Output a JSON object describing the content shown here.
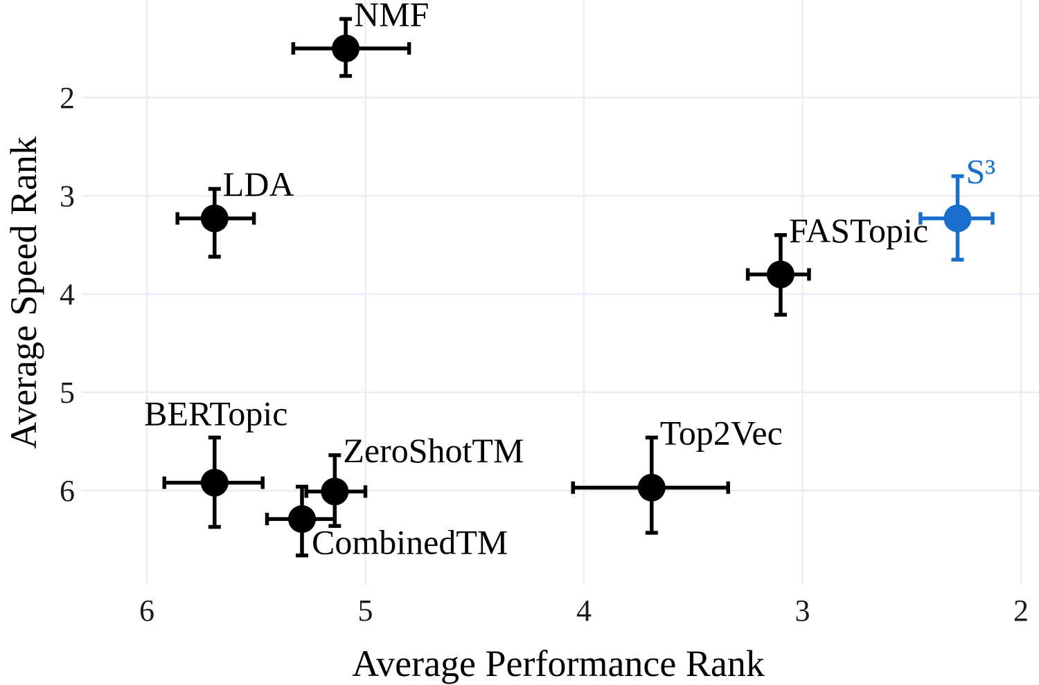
{
  "chart_data": {
    "type": "scatter",
    "xlabel": "Average Performance Rank",
    "ylabel": "Average Speed Rank",
    "x_reversed": true,
    "y_reversed": true,
    "xlim": [
      6.3,
      2.0
    ],
    "ylim": [
      0.95,
      6.9
    ],
    "x_ticks": [
      "6",
      "5",
      "4",
      "3",
      "2"
    ],
    "y_ticks": [
      "2",
      "3",
      "4",
      "5",
      "6"
    ],
    "grid": true,
    "points": [
      {
        "label": "NMF",
        "x": 5.09,
        "y": 1.5,
        "x_err": [
          5.33,
          4.8
        ],
        "y_err": [
          1.2,
          1.78
        ],
        "color": "#000000",
        "label_pos": "top-right"
      },
      {
        "label": "LDA",
        "x": 5.69,
        "y": 3.23,
        "x_err": [
          5.86,
          5.51
        ],
        "y_err": [
          2.93,
          3.62
        ],
        "color": "#000000",
        "label_pos": "top-right"
      },
      {
        "label": "S³",
        "x": 2.29,
        "y": 3.23,
        "x_err": [
          2.46,
          2.13
        ],
        "y_err": [
          2.8,
          3.65
        ],
        "color": "#1a6fce",
        "label_pos": "top-right"
      },
      {
        "label": "FASTopic",
        "x": 3.1,
        "y": 3.8,
        "x_err": [
          3.25,
          2.97
        ],
        "y_err": [
          3.4,
          4.21
        ],
        "color": "#000000",
        "label_pos": "top-right"
      },
      {
        "label": "BERTopic",
        "x": 5.69,
        "y": 5.92,
        "x_err": [
          5.92,
          5.47
        ],
        "y_err": [
          5.46,
          6.37
        ],
        "color": "#000000",
        "label_pos": "top-left"
      },
      {
        "label": "ZeroShotTM",
        "x": 5.14,
        "y": 6.01,
        "x_err": [
          5.27,
          5.0
        ],
        "y_err": [
          5.64,
          6.36
        ],
        "color": "#000000",
        "label_pos": "top-right"
      },
      {
        "label": "CombinedTM",
        "x": 5.29,
        "y": 6.29,
        "x_err": [
          5.45,
          5.14
        ],
        "y_err": [
          5.96,
          6.66
        ],
        "color": "#000000",
        "label_pos": "bottom-right"
      },
      {
        "label": "Top2Vec",
        "x": 3.69,
        "y": 5.97,
        "x_err": [
          4.05,
          3.34
        ],
        "y_err": [
          5.46,
          6.43
        ],
        "color": "#000000",
        "label_pos": "top-right"
      }
    ],
    "colors": {
      "default": "#000000",
      "highlight": "#1a6fce",
      "grid": "#e9edf5"
    }
  }
}
